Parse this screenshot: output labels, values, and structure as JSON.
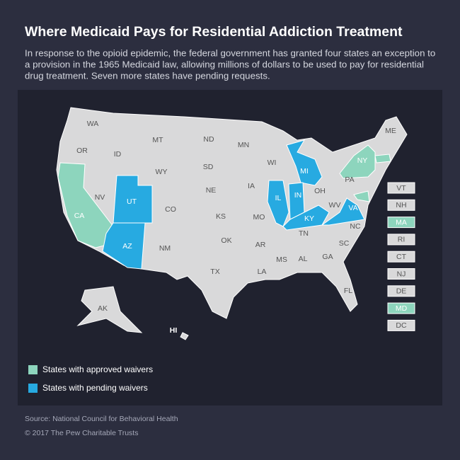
{
  "header": {
    "title": "Where Medicaid Pays for Residential Addiction Treatment",
    "subtitle": [
      "In response to the opioid epidemic, the federal government has granted four states an exception to",
      "a provision in the 1965 Medicaid law, allowing millions of dollars to be used to pay for residential",
      "drug treatment. Seven more states have pending requests."
    ]
  },
  "map": {
    "land_color": "#d9d9da",
    "states": [
      {
        "label": "WA",
        "color": "#d9d9da"
      },
      {
        "label": "OR",
        "color": "#d9d9da"
      },
      {
        "label": "CA",
        "color": "#8dd5bd"
      },
      {
        "label": "NV",
        "color": "#d9d9da"
      },
      {
        "label": "ID",
        "color": "#d9d9da"
      },
      {
        "label": "MT",
        "color": "#d9d9da"
      },
      {
        "label": "WY",
        "color": "#d9d9da"
      },
      {
        "label": "UT",
        "color": "#27aae1"
      },
      {
        "label": "AZ",
        "color": "#27aae1"
      },
      {
        "label": "CO",
        "color": "#d9d9da"
      },
      {
        "label": "NM",
        "color": "#d9d9da"
      },
      {
        "label": "ND",
        "color": "#d9d9da"
      },
      {
        "label": "SD",
        "color": "#d9d9da"
      },
      {
        "label": "NE",
        "color": "#d9d9da"
      },
      {
        "label": "KS",
        "color": "#d9d9da"
      },
      {
        "label": "OK",
        "color": "#d9d9da"
      },
      {
        "label": "TX",
        "color": "#d9d9da"
      },
      {
        "label": "MN",
        "color": "#d9d9da"
      },
      {
        "label": "IA",
        "color": "#d9d9da"
      },
      {
        "label": "MO",
        "color": "#d9d9da"
      },
      {
        "label": "AR",
        "color": "#d9d9da"
      },
      {
        "label": "LA",
        "color": "#d9d9da"
      },
      {
        "label": "WI",
        "color": "#d9d9da"
      },
      {
        "label": "IL",
        "color": "#27aae1"
      },
      {
        "label": "MI",
        "color": "#27aae1"
      },
      {
        "label": "IN",
        "color": "#27aae1"
      },
      {
        "label": "OH",
        "color": "#d9d9da"
      },
      {
        "label": "KY",
        "color": "#27aae1"
      },
      {
        "label": "TN",
        "color": "#d9d9da"
      },
      {
        "label": "MS",
        "color": "#d9d9da"
      },
      {
        "label": "AL",
        "color": "#d9d9da"
      },
      {
        "label": "GA",
        "color": "#d9d9da"
      },
      {
        "label": "FL",
        "color": "#d9d9da"
      },
      {
        "label": "SC",
        "color": "#d9d9da"
      },
      {
        "label": "NC",
        "color": "#d9d9da"
      },
      {
        "label": "VA",
        "color": "#27aae1"
      },
      {
        "label": "WV",
        "color": "#d9d9da"
      },
      {
        "label": "PA",
        "color": "#d9d9da"
      },
      {
        "label": "NY",
        "color": "#8dd5bd"
      },
      {
        "label": "ME",
        "color": "#d9d9da"
      },
      {
        "label": "AK",
        "color": "#d9d9da"
      },
      {
        "label": "HI",
        "color": "#d9d9da"
      },
      {
        "label": "VT",
        "color": "#d9d9da"
      },
      {
        "label": "NH",
        "color": "#d9d9da"
      },
      {
        "label": "MA",
        "color": "#8dd5bd"
      },
      {
        "label": "RI",
        "color": "#d9d9da"
      },
      {
        "label": "CT",
        "color": "#d9d9da"
      },
      {
        "label": "NJ",
        "color": "#d9d9da"
      },
      {
        "label": "DE",
        "color": "#d9d9da"
      },
      {
        "label": "MD",
        "color": "#8dd5bd"
      },
      {
        "label": "DC",
        "color": "#d9d9da"
      }
    ]
  },
  "legend": [
    {
      "label": "States with approved waivers",
      "color": "#8dd5bd"
    },
    {
      "label": "States with pending waivers",
      "color": "#27aae1"
    }
  ],
  "footer": {
    "source": "Source: National Council for Behavioral Health",
    "copyright": "© 2017 The Pew Charitable Trusts"
  }
}
